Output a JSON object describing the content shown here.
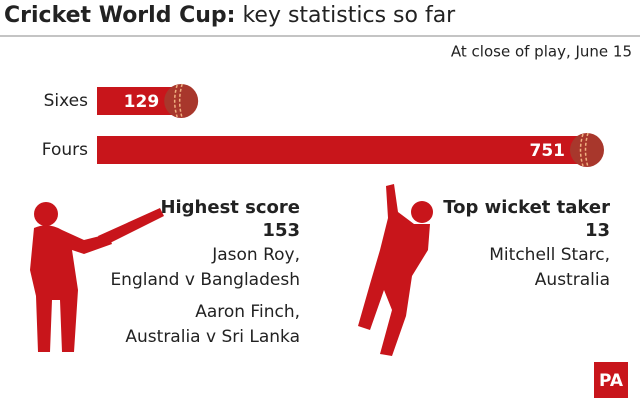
{
  "chart_data": {
    "type": "bar",
    "title": "Cricket World Cup:",
    "title_rest": "key statistics so far",
    "subtitle": "At close of play, June 15",
    "categories": [
      "Sixes",
      "Fours"
    ],
    "values": [
      129,
      751
    ],
    "color": "#c8151b"
  },
  "stats": [
    {
      "label": "Highest score",
      "value": 153,
      "lines": [
        "Jason Roy,",
        "England v Bangladesh",
        "Aaron Finch,",
        "Australia v Sri Lanka"
      ]
    },
    {
      "label": "Top wicket taker",
      "value": 13,
      "lines": [
        "Mitchell Starc,",
        "Australia"
      ]
    }
  ],
  "logo": "PA"
}
